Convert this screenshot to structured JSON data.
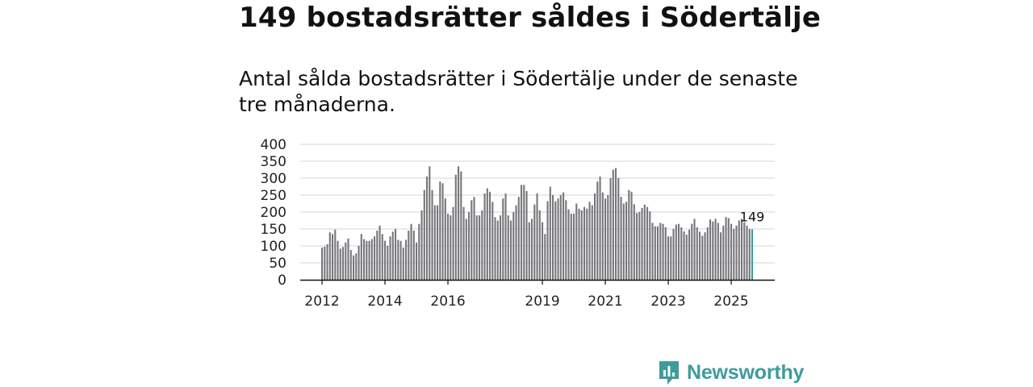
{
  "header": {
    "title": "149 bostadsrätter såldes i Södertälje",
    "subtitle": "Antal sålda bostadsrätter i Södertälje under de senaste tre månaderna."
  },
  "brand": {
    "name": "Newsworthy",
    "color": "#3e9c9a"
  },
  "chart_data": {
    "type": "bar",
    "title": "",
    "xlabel": "",
    "ylabel": "",
    "ylim": [
      0,
      400
    ],
    "yticks": [
      "0",
      "50",
      "100",
      "150",
      "200",
      "250",
      "300",
      "350",
      "400"
    ],
    "xticks": [
      {
        "label": "2012",
        "index": 0
      },
      {
        "label": "2014",
        "index": 24
      },
      {
        "label": "2016",
        "index": 48
      },
      {
        "label": "2019",
        "index": 84
      },
      {
        "label": "2021",
        "index": 108
      },
      {
        "label": "2023",
        "index": 132
      },
      {
        "label": "2025",
        "index": 156
      }
    ],
    "bar_color": "#77767a",
    "highlight_color": "#2aa3a0",
    "highlight_index": 164,
    "highlight_label": "149",
    "values": [
      95,
      98,
      105,
      140,
      135,
      148,
      115,
      92,
      97,
      110,
      122,
      88,
      72,
      78,
      100,
      135,
      120,
      115,
      115,
      120,
      128,
      145,
      160,
      135,
      115,
      100,
      128,
      142,
      150,
      118,
      115,
      95,
      118,
      145,
      165,
      145,
      110,
      165,
      205,
      265,
      305,
      335,
      265,
      220,
      220,
      290,
      285,
      240,
      195,
      190,
      215,
      310,
      335,
      320,
      215,
      180,
      200,
      235,
      245,
      190,
      190,
      205,
      255,
      270,
      260,
      230,
      185,
      175,
      190,
      240,
      255,
      190,
      175,
      200,
      220,
      245,
      280,
      280,
      262,
      170,
      180,
      222,
      255,
      205,
      170,
      135,
      232,
      275,
      250,
      232,
      240,
      250,
      258,
      235,
      208,
      195,
      195,
      225,
      210,
      205,
      215,
      210,
      230,
      220,
      255,
      290,
      305,
      258,
      240,
      250,
      300,
      325,
      330,
      300,
      245,
      225,
      230,
      265,
      260,
      223,
      197,
      200,
      212,
      222,
      215,
      202,
      168,
      158,
      158,
      168,
      165,
      155,
      128,
      128,
      150,
      163,
      165,
      155,
      143,
      133,
      148,
      165,
      180,
      155,
      142,
      130,
      140,
      155,
      178,
      172,
      180,
      168,
      140,
      160,
      185,
      182,
      165,
      150,
      160,
      175,
      180,
      170,
      160,
      150,
      149
    ]
  }
}
